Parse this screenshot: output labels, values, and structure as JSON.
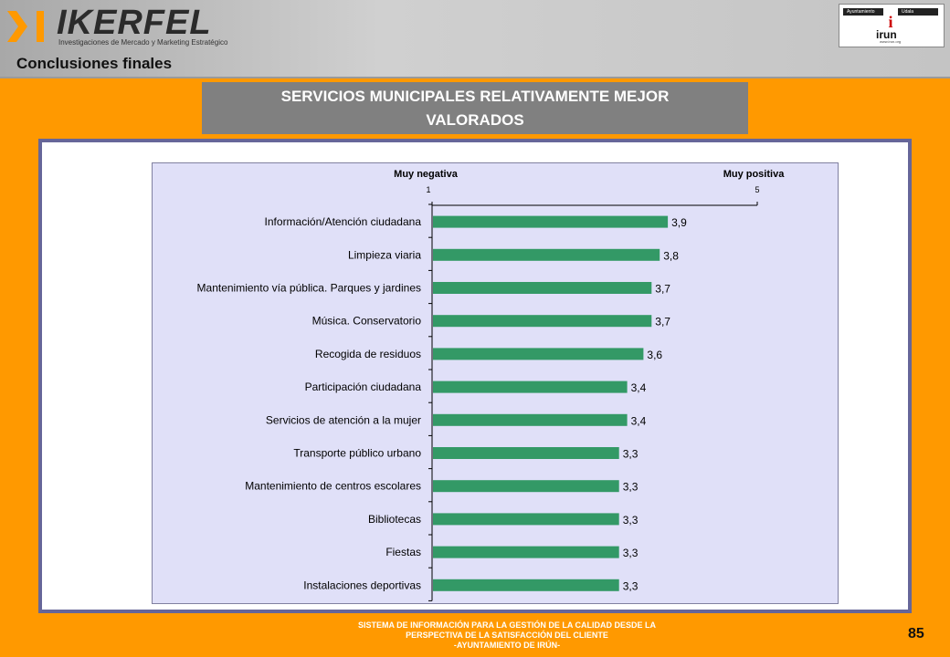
{
  "header": {
    "logo_text": "IKERFEL",
    "logo_tagline": "Investigaciones de Mercado y Marketing Estratégico",
    "section_title": "Conclusiones finales",
    "city_logo": {
      "left_label": "Ayuntamiento",
      "right_label": "Udala",
      "name": "irun",
      "url": "www.irun.org"
    }
  },
  "banner": {
    "line1": "SERVICIOS MUNICIPALES RELATIVAMENTE MEJOR",
    "line2": "VALORADOS"
  },
  "chart_data": {
    "type": "bar",
    "orientation": "horizontal",
    "categories": [
      "Información/Atención ciudadana",
      "Limpieza viaria",
      "Mantenimiento vía pública. Parques y jardines",
      "Música. Conservatorio",
      "Recogida de residuos",
      "Participación ciudadana",
      "Servicios de atención a la mujer",
      "Transporte público urbano",
      "Mantenimiento de centros escolares",
      "Bibliotecas",
      "Fiestas",
      "Instalaciones deportivas"
    ],
    "values": [
      3.9,
      3.8,
      3.7,
      3.7,
      3.6,
      3.4,
      3.4,
      3.3,
      3.3,
      3.3,
      3.3,
      3.3
    ],
    "value_labels": [
      "3,9",
      "3,8",
      "3,7",
      "3,7",
      "3,6",
      "3,4",
      "3,4",
      "3,3",
      "3,3",
      "3,3",
      "3,3",
      "3,3"
    ],
    "xlim": [
      1,
      5
    ],
    "x_ticks": [
      "1",
      "5"
    ],
    "axis_position": "top",
    "scale_left_label": "Muy negativa",
    "scale_right_label": "Muy positiva",
    "bar_color": "#339966",
    "plot_background": "#e0e0f8",
    "grid": false
  },
  "footer": {
    "line1": "SISTEMA DE INFORMACIÓN PARA LA GESTIÓN DE LA CALIDAD DESDE LA",
    "line2": "PERSPECTIVA DE LA SATISFACCIÓN DEL CLIENTE",
    "line3": "-AYUNTAMIENTO DE IRÚN-",
    "page_number": "85"
  }
}
